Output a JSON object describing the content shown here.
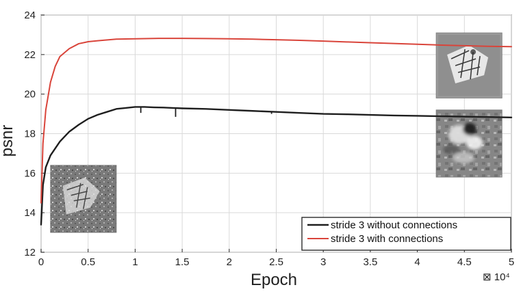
{
  "chart_data": {
    "type": "line",
    "xlabel": "Epoch",
    "ylabel": "psnr",
    "x_multiplier_label": "⊠ 10⁴",
    "xlim": [
      0,
      5
    ],
    "ylim": [
      12,
      24
    ],
    "x_ticks": [
      "0",
      "0.5",
      "1",
      "1.5",
      "2",
      "2.5",
      "3",
      "3.5",
      "4",
      "4.5",
      "5"
    ],
    "y_ticks": [
      "12",
      "14",
      "16",
      "18",
      "20",
      "22",
      "24"
    ],
    "grid": true,
    "legend_position": "bottom-right",
    "series": [
      {
        "name": "stride 3 without connections",
        "color": "#1e1e1e",
        "points": [
          [
            0.0,
            13.4
          ],
          [
            0.02,
            15.4
          ],
          [
            0.05,
            16.3
          ],
          [
            0.1,
            16.9
          ],
          [
            0.2,
            17.6
          ],
          [
            0.3,
            18.1
          ],
          [
            0.4,
            18.45
          ],
          [
            0.5,
            18.75
          ],
          [
            0.6,
            18.95
          ],
          [
            0.7,
            19.1
          ],
          [
            0.8,
            19.25
          ],
          [
            0.9,
            19.3
          ],
          [
            1.0,
            19.35
          ],
          [
            1.1,
            19.35
          ],
          [
            1.2,
            19.33
          ],
          [
            1.3,
            19.32
          ],
          [
            1.4,
            19.3
          ],
          [
            1.5,
            19.28
          ],
          [
            1.75,
            19.25
          ],
          [
            2.0,
            19.2
          ],
          [
            2.25,
            19.15
          ],
          [
            2.5,
            19.1
          ],
          [
            2.75,
            19.05
          ],
          [
            3.0,
            19.0
          ],
          [
            3.25,
            18.98
          ],
          [
            3.5,
            18.95
          ],
          [
            3.75,
            18.92
          ],
          [
            4.0,
            18.9
          ],
          [
            4.25,
            18.88
          ],
          [
            4.5,
            18.86
          ],
          [
            4.75,
            18.84
          ],
          [
            5.0,
            18.82
          ]
        ],
        "spikes": [
          [
            1.06,
            19.05
          ],
          [
            1.43,
            18.85
          ],
          [
            2.45,
            19.0
          ]
        ]
      },
      {
        "name": "stride 3 with connections",
        "color": "#d9443a",
        "points": [
          [
            0.0,
            14.5
          ],
          [
            0.02,
            17.5
          ],
          [
            0.05,
            19.2
          ],
          [
            0.1,
            20.6
          ],
          [
            0.15,
            21.4
          ],
          [
            0.2,
            21.9
          ],
          [
            0.3,
            22.3
          ],
          [
            0.4,
            22.55
          ],
          [
            0.5,
            22.65
          ],
          [
            0.6,
            22.7
          ],
          [
            0.8,
            22.78
          ],
          [
            1.0,
            22.8
          ],
          [
            1.25,
            22.82
          ],
          [
            1.5,
            22.82
          ],
          [
            1.75,
            22.81
          ],
          [
            2.0,
            22.8
          ],
          [
            2.25,
            22.78
          ],
          [
            2.5,
            22.75
          ],
          [
            2.75,
            22.72
          ],
          [
            3.0,
            22.68
          ],
          [
            3.25,
            22.64
          ],
          [
            3.5,
            22.6
          ],
          [
            3.75,
            22.56
          ],
          [
            4.0,
            22.52
          ],
          [
            4.25,
            22.48
          ],
          [
            4.5,
            22.45
          ],
          [
            4.75,
            22.42
          ],
          [
            5.0,
            22.4
          ]
        ]
      }
    ],
    "inset_images": [
      {
        "description_name": "noisy-butterfly-image",
        "x_data_range": [
          0.1,
          0.8
        ],
        "y_data_range": [
          13.0,
          16.4
        ]
      },
      {
        "description_name": "clean-butterfly-image",
        "x_data_range": [
          4.2,
          4.9
        ],
        "y_data_range": [
          19.8,
          23.1
        ]
      },
      {
        "description_name": "blurry-butterfly-image",
        "x_data_range": [
          4.2,
          4.9
        ],
        "y_data_range": [
          15.8,
          19.2
        ]
      }
    ]
  }
}
